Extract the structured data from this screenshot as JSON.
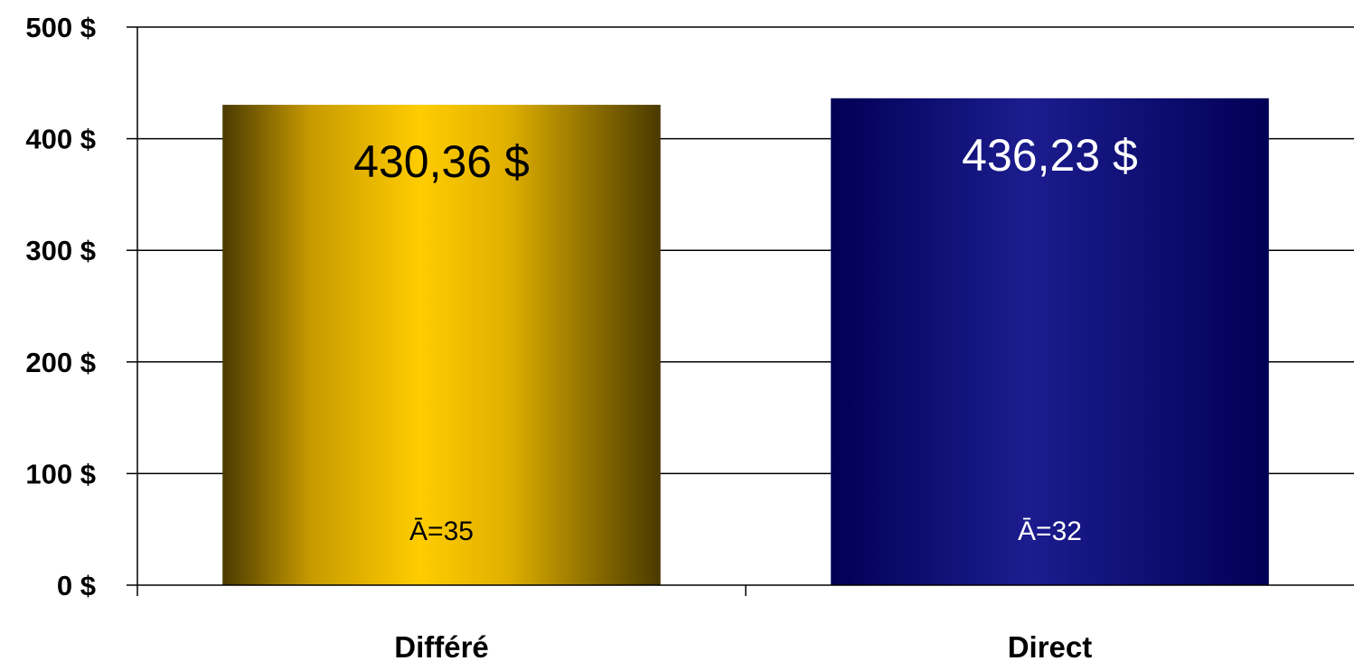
{
  "chart_data": {
    "type": "bar",
    "categories": [
      "Différé",
      "Direct"
    ],
    "values": [
      430.36,
      436.23
    ],
    "value_labels": [
      "430,36 $",
      "436,23 $"
    ],
    "n_labels": [
      "Ā=35",
      "Ā=32"
    ],
    "ylim": [
      0,
      500
    ],
    "yticks": [
      0,
      100,
      200,
      300,
      400,
      500
    ],
    "ytick_labels": [
      "0 $",
      "100 $",
      "200 $",
      "300 $",
      "400 $",
      "500 $"
    ],
    "grid": true,
    "legend": "none",
    "title": "",
    "xlabel": "",
    "ylabel": "",
    "colors": [
      "#ffcc00",
      "#1a1a8c"
    ],
    "value_label_colors": [
      "#000000",
      "#ffffff"
    ]
  }
}
